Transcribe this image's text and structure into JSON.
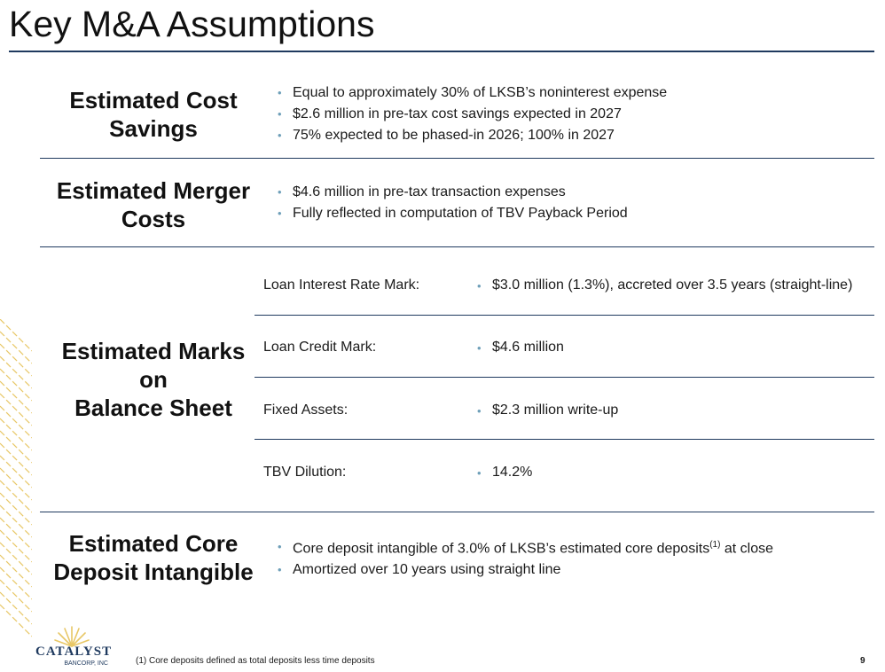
{
  "slide": {
    "title": "Key M&A Assumptions",
    "sections": {
      "cost_savings": {
        "heading_line1": "Estimated Cost",
        "heading_line2": "Savings",
        "bullets": [
          "Equal to approximately 30% of LKSB’s noninterest expense",
          "$2.6 million in pre-tax cost savings expected in 2027",
          "75% expected to be phased-in 2026; 100% in 2027"
        ]
      },
      "merger_costs": {
        "heading_line1": "Estimated Merger",
        "heading_line2": "Costs",
        "bullets": [
          "$4.6 million in pre-tax transaction expenses",
          "Fully reflected in computation of TBV Payback Period"
        ]
      },
      "marks": {
        "heading_line1": "Estimated Marks",
        "heading_line2": "on",
        "heading_line3": "Balance Sheet",
        "rows": [
          {
            "label": "Loan Interest Rate Mark:",
            "value": "$3.0 million (1.3%), accreted over 3.5 years (straight-line)"
          },
          {
            "label": "Loan Credit Mark:",
            "value": "$4.6 million"
          },
          {
            "label": "Fixed Assets:",
            "value": "$2.3 million write-up"
          },
          {
            "label": "TBV Dilution:",
            "value": "14.2%"
          }
        ]
      },
      "core_deposit": {
        "heading_line1": "Estimated Core",
        "heading_line2": "Deposit Intangible",
        "bullet1_text": "Core deposit intangible of 3.0% of LKSB’s estimated core deposits",
        "bullet1_sup": "(1)",
        "bullet1_tail": " at close",
        "bullet2": "Amortized over 10 years using straight line"
      }
    },
    "bullet_symbol": "•",
    "footnote": "(1) Core deposits defined as total deposits less time deposits",
    "page_number": "9",
    "logo": {
      "name": "CATALYST",
      "sub": "BANCORP, INC"
    },
    "colors": {
      "navy": "#1f3a5f",
      "bullet": "#6e9fb9",
      "gold": "#e8c766"
    }
  }
}
